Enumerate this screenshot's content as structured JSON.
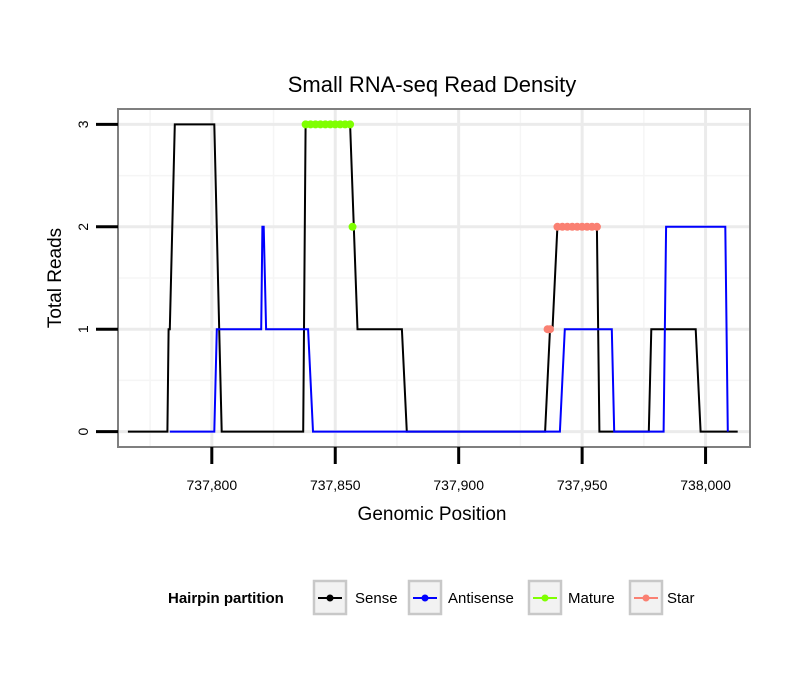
{
  "chart_data": {
    "type": "line",
    "title": "Small RNA-seq Read Density",
    "xlabel": "Genomic Position",
    "ylabel": "Total Reads",
    "xlim": [
      737762,
      738018
    ],
    "ylim": [
      -0.15,
      3.15
    ],
    "x_ticks": [
      737800,
      737850,
      737900,
      737950,
      738000
    ],
    "x_tick_labels": [
      "737,800",
      "737,850",
      "737,900",
      "737,950",
      "738,000"
    ],
    "y_ticks": [
      0,
      1,
      2,
      3
    ],
    "y_tick_labels": [
      "0",
      "1",
      "2",
      "3"
    ],
    "grid": true,
    "legend": {
      "title": "Hairpin partition",
      "placement": "bottom",
      "entries": [
        {
          "name": "Sense",
          "color": "#000000"
        },
        {
          "name": "Antisense",
          "color": "#0000ff"
        },
        {
          "name": "Mature",
          "color": "#7fff00"
        },
        {
          "name": "Star",
          "color": "#fa8072"
        }
      ]
    },
    "series": [
      {
        "name": "Sense",
        "color": "#000000",
        "style": "line",
        "x": [
          737766,
          737782,
          737782.5,
          737783,
          737785,
          737801,
          737803,
          737804,
          737837,
          737838,
          737856,
          737859,
          737877,
          737879,
          737935,
          737937,
          737938,
          737940,
          737956,
          737957,
          737960,
          737977,
          737978,
          737996,
          737998,
          738013
        ],
        "y": [
          0,
          0,
          1,
          1,
          3,
          3,
          1,
          0,
          0,
          3,
          3,
          1,
          1,
          0,
          0,
          1,
          1,
          2,
          2,
          0,
          0,
          0,
          1,
          1,
          0,
          0
        ]
      },
      {
        "name": "Antisense",
        "color": "#0000ff",
        "style": "line",
        "x": [
          737783,
          737801,
          737802,
          737820,
          737820.5,
          737821,
          737822,
          737839,
          737841,
          737877,
          737941,
          737943,
          737962,
          737963,
          737981,
          737982,
          737983,
          737984,
          738008,
          738009
        ],
        "y": [
          0,
          0,
          1,
          1,
          2,
          2,
          1,
          1,
          0,
          0,
          0,
          1,
          1,
          0,
          0,
          0,
          0,
          2,
          2,
          0
        ]
      },
      {
        "name": "Mature",
        "color": "#7fff00",
        "style": "points",
        "x": [
          737838,
          737840,
          737842,
          737844,
          737846,
          737848,
          737850,
          737852,
          737854,
          737856,
          737857
        ],
        "y": [
          3,
          3,
          3,
          3,
          3,
          3,
          3,
          3,
          3,
          3,
          2
        ]
      },
      {
        "name": "Star",
        "color": "#fa8072",
        "style": "points",
        "x": [
          737936,
          737937,
          737940,
          737942,
          737944,
          737946,
          737948,
          737950,
          737952,
          737954,
          737956
        ],
        "y": [
          1,
          1,
          2,
          2,
          2,
          2,
          2,
          2,
          2,
          2,
          2
        ]
      }
    ]
  }
}
